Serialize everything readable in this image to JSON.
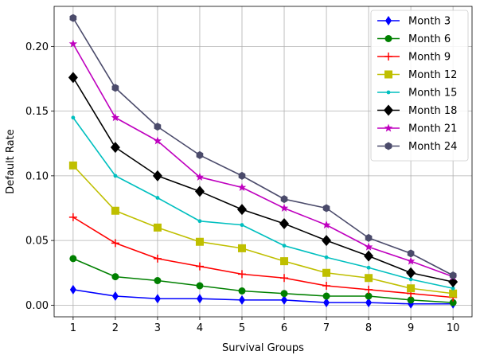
{
  "chart_data": {
    "type": "line",
    "title": "",
    "xlabel": "Survival Groups",
    "ylabel": "Default Rate",
    "x": [
      1,
      2,
      3,
      4,
      5,
      6,
      7,
      8,
      9,
      10
    ],
    "xlim": [
      0.55,
      10.45
    ],
    "ylim": [
      -0.009,
      0.231
    ],
    "xticks": [
      "1",
      "2",
      "3",
      "4",
      "5",
      "6",
      "7",
      "8",
      "9",
      "10"
    ],
    "yticks": [
      {
        "value": 0.0,
        "label": "0.00"
      },
      {
        "value": 0.05,
        "label": "0.05"
      },
      {
        "value": 0.1,
        "label": "0.10"
      },
      {
        "value": 0.15,
        "label": "0.15"
      },
      {
        "value": 0.2,
        "label": "0.20"
      }
    ],
    "grid": true,
    "legend_position": "top-right",
    "series": [
      {
        "name": "Month 3",
        "color": "#0000ff",
        "marker": "diamond-thin",
        "values": [
          0.012,
          0.007,
          0.005,
          0.005,
          0.004,
          0.004,
          0.002,
          0.002,
          0.001,
          0.001
        ]
      },
      {
        "name": "Month 6",
        "color": "#008000",
        "marker": "circle",
        "values": [
          0.036,
          0.022,
          0.019,
          0.015,
          0.011,
          0.009,
          0.007,
          0.007,
          0.004,
          0.002
        ]
      },
      {
        "name": "Month 9",
        "color": "#ff0000",
        "marker": "plus",
        "values": [
          0.068,
          0.048,
          0.036,
          0.03,
          0.024,
          0.021,
          0.015,
          0.012,
          0.009,
          0.006
        ]
      },
      {
        "name": "Month 12",
        "color": "#bfbf00",
        "marker": "square",
        "values": [
          0.108,
          0.073,
          0.06,
          0.049,
          0.044,
          0.034,
          0.025,
          0.021,
          0.013,
          0.009
        ]
      },
      {
        "name": "Month 15",
        "color": "#00bfbf",
        "marker": "point",
        "values": [
          0.145,
          0.1,
          0.083,
          0.065,
          0.062,
          0.046,
          0.037,
          0.029,
          0.02,
          0.013
        ]
      },
      {
        "name": "Month 18",
        "color": "#000000",
        "marker": "diamond",
        "values": [
          0.176,
          0.122,
          0.1,
          0.088,
          0.074,
          0.063,
          0.05,
          0.038,
          0.025,
          0.018
        ]
      },
      {
        "name": "Month 21",
        "color": "#bf00bf",
        "marker": "star",
        "values": [
          0.202,
          0.145,
          0.127,
          0.099,
          0.091,
          0.075,
          0.062,
          0.045,
          0.034,
          0.022
        ]
      },
      {
        "name": "Month 24",
        "color": "#4b4b6b",
        "marker": "hexagon",
        "values": [
          0.222,
          0.168,
          0.138,
          0.116,
          0.1,
          0.082,
          0.075,
          0.052,
          0.04,
          0.023
        ]
      }
    ]
  }
}
